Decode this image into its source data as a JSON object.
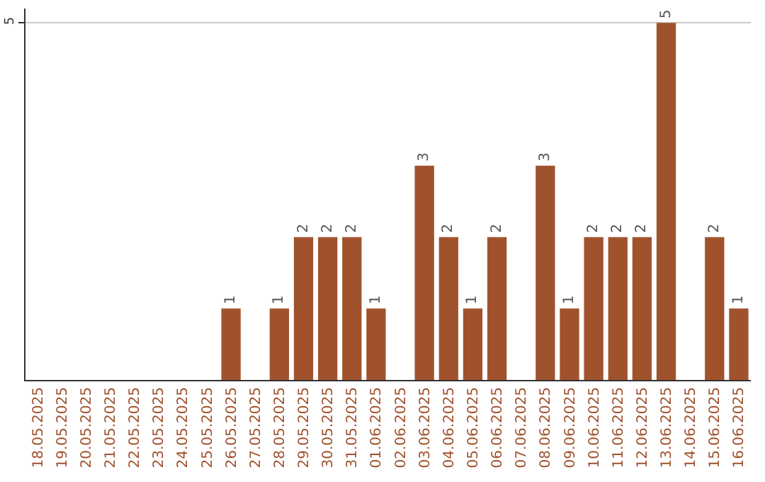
{
  "chart_data": {
    "type": "bar",
    "categories": [
      "18.05.2025",
      "19.05.2025",
      "20.05.2025",
      "21.05.2025",
      "22.05.2025",
      "23.05.2025",
      "24.05.2025",
      "25.05.2025",
      "26.05.2025",
      "27.05.2025",
      "28.05.2025",
      "29.05.2025",
      "30.05.2025",
      "31.05.2025",
      "01.06.2025",
      "02.06.2025",
      "03.06.2025",
      "04.06.2025",
      "05.06.2025",
      "06.06.2025",
      "07.06.2025",
      "08.06.2025",
      "09.06.2025",
      "10.06.2025",
      "11.06.2025",
      "12.06.2025",
      "13.06.2025",
      "14.06.2025",
      "15.06.2025",
      "16.06.2025"
    ],
    "values": [
      0,
      0,
      0,
      0,
      0,
      0,
      0,
      0,
      1,
      0,
      1,
      2,
      2,
      2,
      1,
      0,
      3,
      2,
      1,
      2,
      0,
      3,
      1,
      2,
      2,
      2,
      5,
      0,
      2,
      1
    ],
    "value_labels": [
      null,
      null,
      null,
      null,
      null,
      null,
      null,
      null,
      "1",
      null,
      "1",
      "2",
      "2",
      "2",
      "1",
      null,
      "3",
      "2",
      "1",
      "2",
      null,
      "3",
      "1",
      "2",
      "2",
      "2",
      "5",
      null,
      "2",
      "1"
    ],
    "color": "#a0522d",
    "ylim": [
      0,
      5.2
    ],
    "yticks": [
      5
    ],
    "grid": "y",
    "legend": false
  }
}
